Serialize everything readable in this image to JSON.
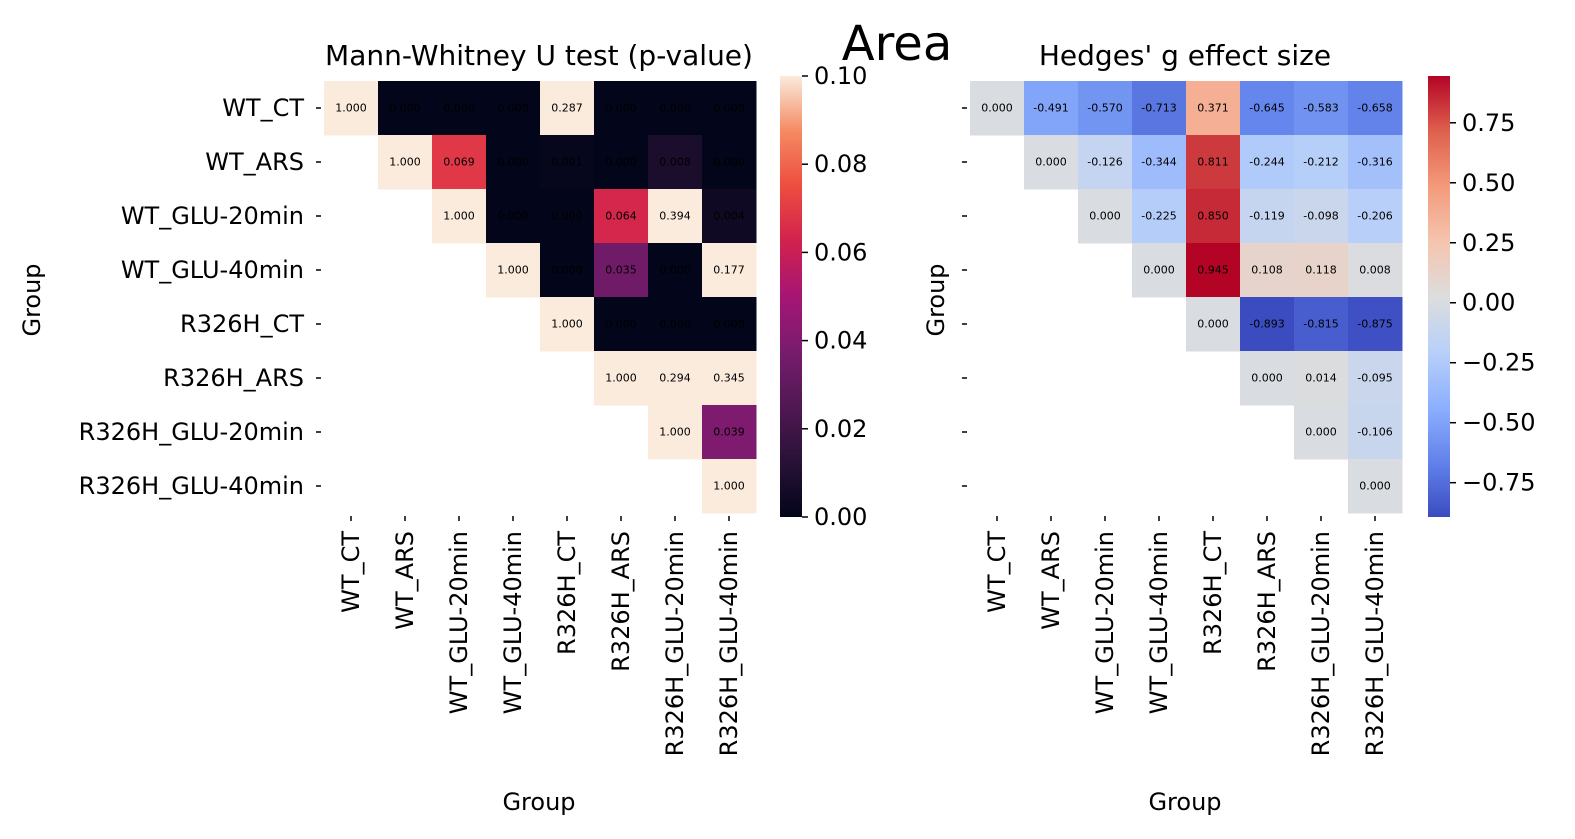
{
  "figure": {
    "suptitle": "Area"
  },
  "chart_data": [
    {
      "type": "heatmap",
      "title": "Mann-Whitney U test (p-value)",
      "xlabel": "Group",
      "ylabel": "Group",
      "categories": [
        "WT_CT",
        "WT_ARS",
        "WT_GLU-20min",
        "WT_GLU-40min",
        "R326H_CT",
        "R326H_ARS",
        "R326H_GLU-20min",
        "R326H_GLU-40min"
      ],
      "matrix": [
        [
          1.0,
          0.0,
          0.0,
          0.0,
          0.287,
          0.0,
          0.0,
          0.0
        ],
        [
          null,
          1.0,
          0.069,
          0.0,
          0.001,
          0.0,
          0.008,
          0.0
        ],
        [
          null,
          null,
          1.0,
          0.0,
          0.0,
          0.064,
          0.394,
          0.004
        ],
        [
          null,
          null,
          null,
          1.0,
          0.0,
          0.035,
          0.0,
          0.177
        ],
        [
          null,
          null,
          null,
          null,
          1.0,
          0.0,
          0.0,
          0.0
        ],
        [
          null,
          null,
          null,
          null,
          null,
          1.0,
          0.294,
          0.345
        ],
        [
          null,
          null,
          null,
          null,
          null,
          null,
          1.0,
          0.039
        ],
        [
          null,
          null,
          null,
          null,
          null,
          null,
          null,
          1.0
        ]
      ],
      "colormap": "rocket",
      "vmin": 0.0,
      "vmax": 0.1,
      "colorbar_ticks": [
        "0.00",
        "0.02",
        "0.04",
        "0.06",
        "0.08",
        "0.10"
      ]
    },
    {
      "type": "heatmap",
      "title": "Hedges' g effect size",
      "xlabel": "Group",
      "ylabel": "Group",
      "categories": [
        "WT_CT",
        "WT_ARS",
        "WT_GLU-20min",
        "WT_GLU-40min",
        "R326H_CT",
        "R326H_ARS",
        "R326H_GLU-20min",
        "R326H_GLU-40min"
      ],
      "matrix": [
        [
          0.0,
          -0.491,
          -0.57,
          -0.713,
          0.371,
          -0.645,
          -0.583,
          -0.658
        ],
        [
          null,
          0.0,
          -0.126,
          -0.344,
          0.811,
          -0.244,
          -0.212,
          -0.316
        ],
        [
          null,
          null,
          0.0,
          -0.225,
          0.85,
          -0.119,
          -0.098,
          -0.206
        ],
        [
          null,
          null,
          null,
          0.0,
          0.945,
          0.108,
          0.118,
          0.008
        ],
        [
          null,
          null,
          null,
          null,
          0.0,
          -0.893,
          -0.815,
          -0.875
        ],
        [
          null,
          null,
          null,
          null,
          null,
          0.0,
          0.014,
          -0.095
        ],
        [
          null,
          null,
          null,
          null,
          null,
          null,
          0.0,
          -0.106
        ],
        [
          null,
          null,
          null,
          null,
          null,
          null,
          null,
          0.0
        ]
      ],
      "colormap": "coolwarm",
      "vmin": -0.893,
      "vmax": 0.945,
      "colorbar_ticks": [
        "−0.75",
        "−0.50",
        "−0.25",
        "0.00",
        "0.25",
        "0.50",
        "0.75"
      ],
      "colorbar_tick_values": [
        -0.75,
        -0.5,
        -0.25,
        0.0,
        0.25,
        0.5,
        0.75
      ]
    }
  ]
}
